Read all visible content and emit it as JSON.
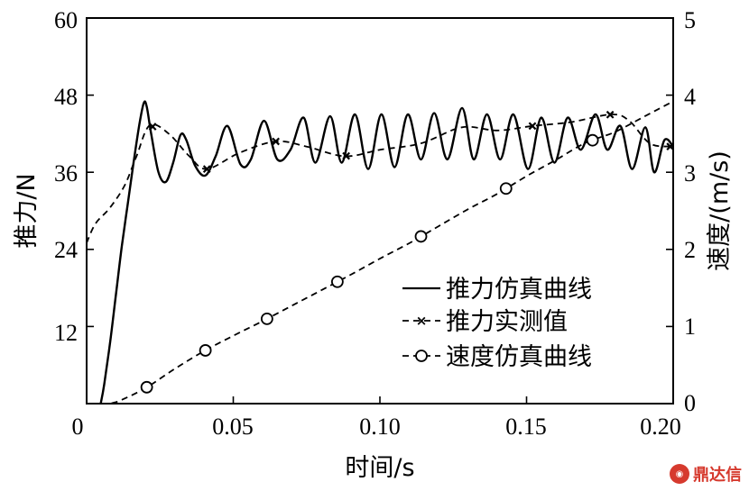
{
  "chart_data": {
    "type": "line",
    "xlabel": "时间/s",
    "ylabel_left": "推力/N",
    "ylabel_right": "速度/(m/s)",
    "xlim": [
      0,
      0.2
    ],
    "ylim_left": [
      0,
      60
    ],
    "ylim_right": [
      0,
      5
    ],
    "x_ticks": [
      "0",
      "0.05",
      "0.10",
      "0.15",
      "0.20"
    ],
    "x_tick_values": [
      0,
      0.05,
      0.1,
      0.15,
      0.2
    ],
    "y_left_ticks": [
      "12",
      "24",
      "36",
      "48",
      "60"
    ],
    "y_left_tick_values": [
      12,
      24,
      36,
      48,
      60
    ],
    "y_right_ticks": [
      "0",
      "1",
      "2",
      "3",
      "4",
      "5"
    ],
    "y_right_tick_values": [
      0,
      1,
      2,
      3,
      4,
      5
    ],
    "grid": false,
    "legend_position": "bottom-right",
    "series": [
      {
        "name": "推力仿真曲线",
        "axis": "left",
        "style": "solid",
        "marker": "none",
        "x": [
          0.0048,
          0.006,
          0.008,
          0.01,
          0.012,
          0.014,
          0.016,
          0.018,
          0.0195,
          0.0205,
          0.022,
          0.0245,
          0.027,
          0.0295,
          0.032,
          0.034,
          0.037,
          0.0405,
          0.044,
          0.048,
          0.0525,
          0.056,
          0.0605,
          0.065,
          0.0695,
          0.074,
          0.078,
          0.083,
          0.087,
          0.0915,
          0.096,
          0.1005,
          0.105,
          0.1095,
          0.114,
          0.1185,
          0.123,
          0.128,
          0.132,
          0.1365,
          0.141,
          0.1455,
          0.1505,
          0.155,
          0.1595,
          0.164,
          0.1685,
          0.1735,
          0.1775,
          0.182,
          0.186,
          0.1905,
          0.1935,
          0.197,
          0.2
        ],
        "y": [
          0,
          3,
          9.5,
          17,
          24.5,
          31,
          37.5,
          43.5,
          46.8,
          46.2,
          42,
          36,
          34.5,
          37.5,
          41.8,
          41,
          37,
          35.5,
          38.5,
          43.2,
          37.2,
          38,
          44,
          38,
          39.5,
          44.5,
          37.5,
          44.7,
          37.5,
          45,
          36.5,
          45,
          36.8,
          45,
          38,
          45.2,
          38,
          46,
          38,
          45,
          38,
          45,
          36.5,
          44.5,
          37.5,
          44.5,
          39.5,
          45,
          39.5,
          43.2,
          36.5,
          43,
          36,
          41,
          40
        ]
      },
      {
        "name": "推力实测值",
        "axis": "left",
        "style": "dashed",
        "marker": "x",
        "x": [
          0.0,
          0.003,
          0.008,
          0.013,
          0.017,
          0.0215,
          0.028,
          0.035,
          0.041,
          0.052,
          0.0645,
          0.075,
          0.088,
          0.1,
          0.114,
          0.128,
          0.14,
          0.152,
          0.165,
          0.179,
          0.185,
          0.192,
          0.199
        ],
        "y": [
          25,
          28,
          30.5,
          34,
          38.5,
          43.3,
          42,
          38.5,
          36.5,
          39,
          40.8,
          40,
          38.5,
          39.5,
          40.5,
          43,
          42.5,
          43.2,
          43.8,
          45,
          44,
          40.5,
          40
        ],
        "marker_x": [
          0.0225,
          0.041,
          0.0645,
          0.0885,
          0.152,
          0.1785,
          0.199
        ]
      },
      {
        "name": "速度仿真曲线",
        "axis": "right",
        "style": "dashed",
        "marker": "circle",
        "x": [
          0.0048,
          0.01,
          0.02,
          0.03,
          0.04,
          0.05,
          0.06,
          0.07,
          0.08,
          0.09,
          0.1,
          0.11,
          0.12,
          0.13,
          0.14,
          0.15,
          0.16,
          0.17,
          0.18,
          0.19,
          0.2
        ],
        "y": [
          0,
          0.02,
          0.2,
          0.45,
          0.68,
          0.88,
          1.07,
          1.27,
          1.47,
          1.67,
          1.88,
          2.08,
          2.3,
          2.52,
          2.72,
          2.95,
          3.16,
          3.38,
          3.52,
          3.72,
          3.92
        ],
        "marker_x": [
          0.0205,
          0.0405,
          0.0615,
          0.0855,
          0.114,
          0.143,
          0.1725
        ]
      }
    ]
  },
  "watermark": {
    "icon": "dingdaxin-logo",
    "text": "鼎达信"
  }
}
